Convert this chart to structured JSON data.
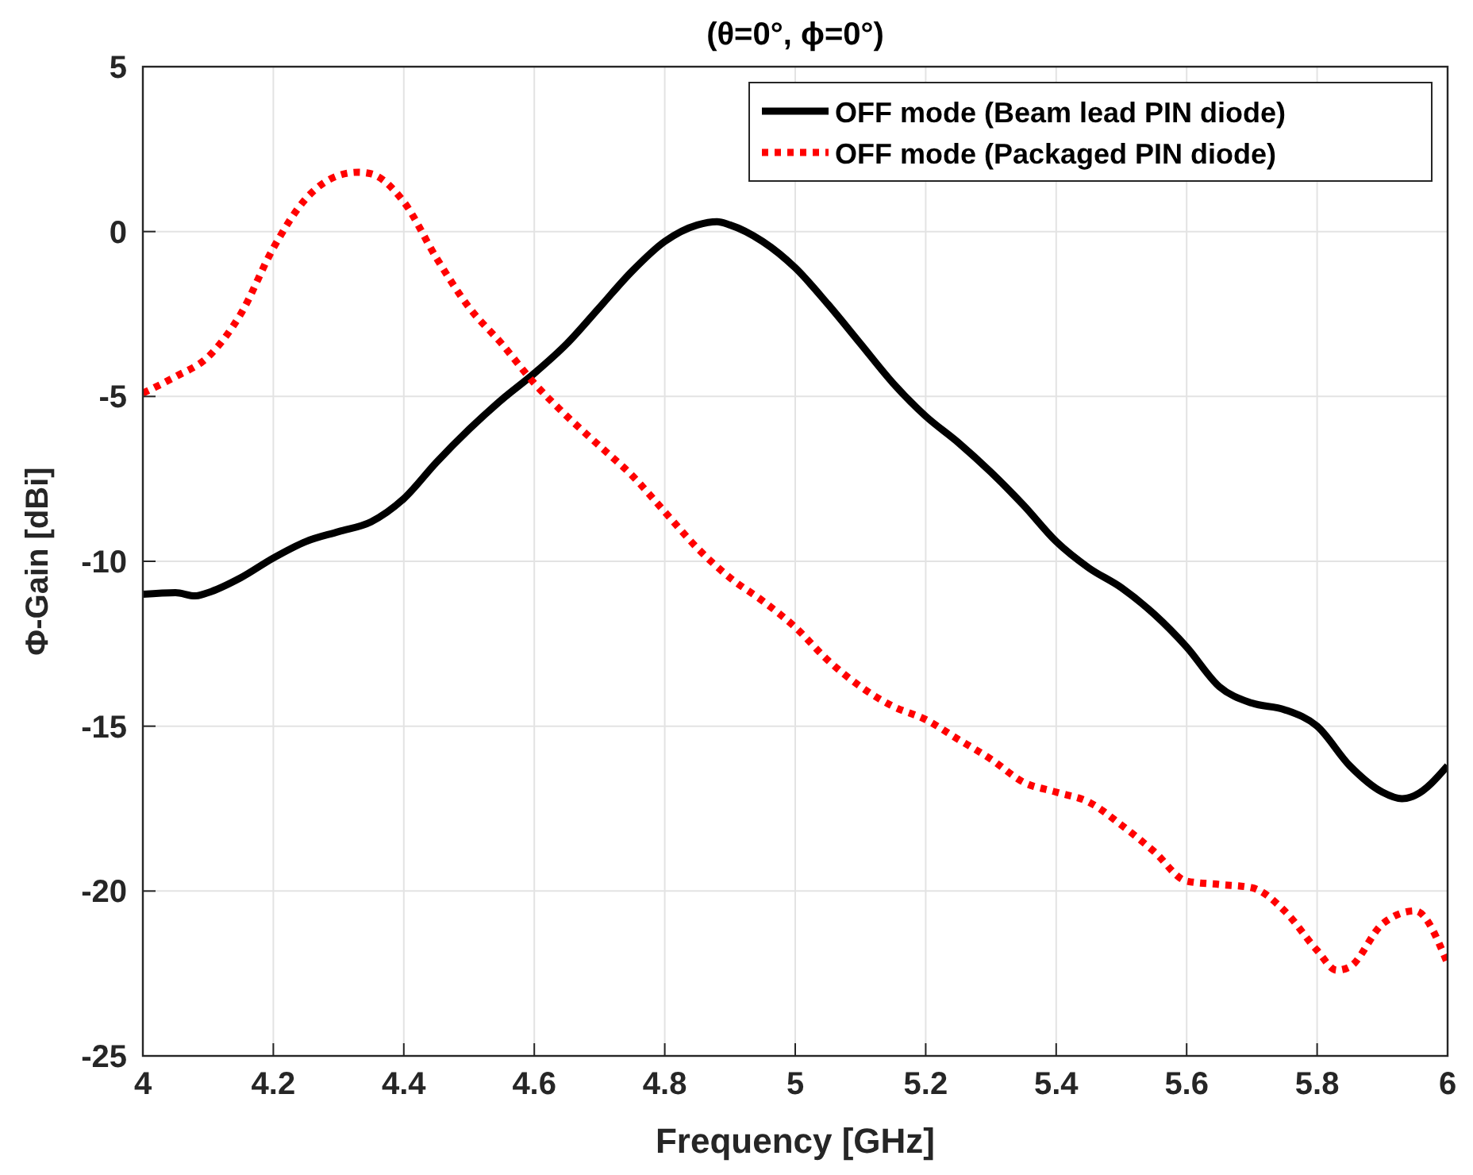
{
  "chart_data": {
    "type": "line",
    "title": "(θ=0°, ϕ=0°)",
    "xlabel": "Frequency [GHz]",
    "ylabel": "Φ-Gain [dBi]",
    "xlim": [
      4,
      6
    ],
    "xticks": [
      4,
      4.2,
      4.4,
      4.6,
      4.8,
      5,
      5.2,
      5.4,
      5.6,
      5.8,
      6
    ],
    "ylim": [
      -25,
      5
    ],
    "yticks": [
      -25,
      -20,
      -15,
      -10,
      -5,
      0,
      5
    ],
    "grid": true,
    "legend": "top right",
    "series": [
      {
        "name": "OFF mode (Beam lead PIN diode)",
        "color": "#000000",
        "line_style": "solid",
        "x": [
          4,
          4.05,
          4.08,
          4.1,
          4.15,
          4.2,
          4.25,
          4.3,
          4.35,
          4.4,
          4.45,
          4.5,
          4.55,
          4.6,
          4.65,
          4.7,
          4.75,
          4.8,
          4.85,
          4.88,
          4.9,
          4.95,
          5,
          5.05,
          5.1,
          5.15,
          5.2,
          5.25,
          5.3,
          5.35,
          5.4,
          5.45,
          5.5,
          5.55,
          5.6,
          5.65,
          5.7,
          5.75,
          5.8,
          5.85,
          5.9,
          5.93,
          5.95,
          6
        ],
        "values": [
          -11,
          -10.95,
          -11.05,
          -10.95,
          -10.5,
          -9.9,
          -9.4,
          -9.1,
          -8.8,
          -8.1,
          -7,
          -6,
          -5.1,
          -4.3,
          -3.4,
          -2.3,
          -1.2,
          -0.3,
          0.2,
          0.3,
          0.2,
          -0.3,
          -1.1,
          -2.2,
          -3.4,
          -4.6,
          -5.6,
          -6.4,
          -7.3,
          -8.3,
          -9.4,
          -10.2,
          -10.8,
          -11.6,
          -12.6,
          -13.8,
          -14.3,
          -14.5,
          -15,
          -16.2,
          -17,
          -17.2,
          -17.1,
          -16.2
        ]
      },
      {
        "name": "OFF mode (Packaged PIN diode)",
        "color": "#ff0000",
        "line_style": "dotted",
        "x": [
          4,
          4.05,
          4.1,
          4.15,
          4.2,
          4.25,
          4.3,
          4.33,
          4.35,
          4.4,
          4.45,
          4.5,
          4.55,
          4.6,
          4.65,
          4.7,
          4.75,
          4.8,
          4.85,
          4.9,
          4.95,
          5,
          5.05,
          5.1,
          5.15,
          5.2,
          5.25,
          5.3,
          5.35,
          5.4,
          5.45,
          5.5,
          5.55,
          5.6,
          5.65,
          5.7,
          5.75,
          5.8,
          5.83,
          5.85,
          5.9,
          5.95,
          6
        ],
        "values": [
          -4.9,
          -4.4,
          -3.8,
          -2.5,
          -0.5,
          1,
          1.7,
          1.8,
          1.75,
          0.9,
          -0.8,
          -2.3,
          -3.4,
          -4.6,
          -5.6,
          -6.5,
          -7.4,
          -8.5,
          -9.6,
          -10.5,
          -11.2,
          -12,
          -13,
          -13.8,
          -14.4,
          -14.8,
          -15.4,
          -16,
          -16.7,
          -17,
          -17.3,
          -18,
          -18.8,
          -19.7,
          -19.8,
          -19.9,
          -20.6,
          -21.8,
          -22.4,
          -22.3,
          -21,
          -20.6,
          -22.2
        ]
      }
    ]
  }
}
